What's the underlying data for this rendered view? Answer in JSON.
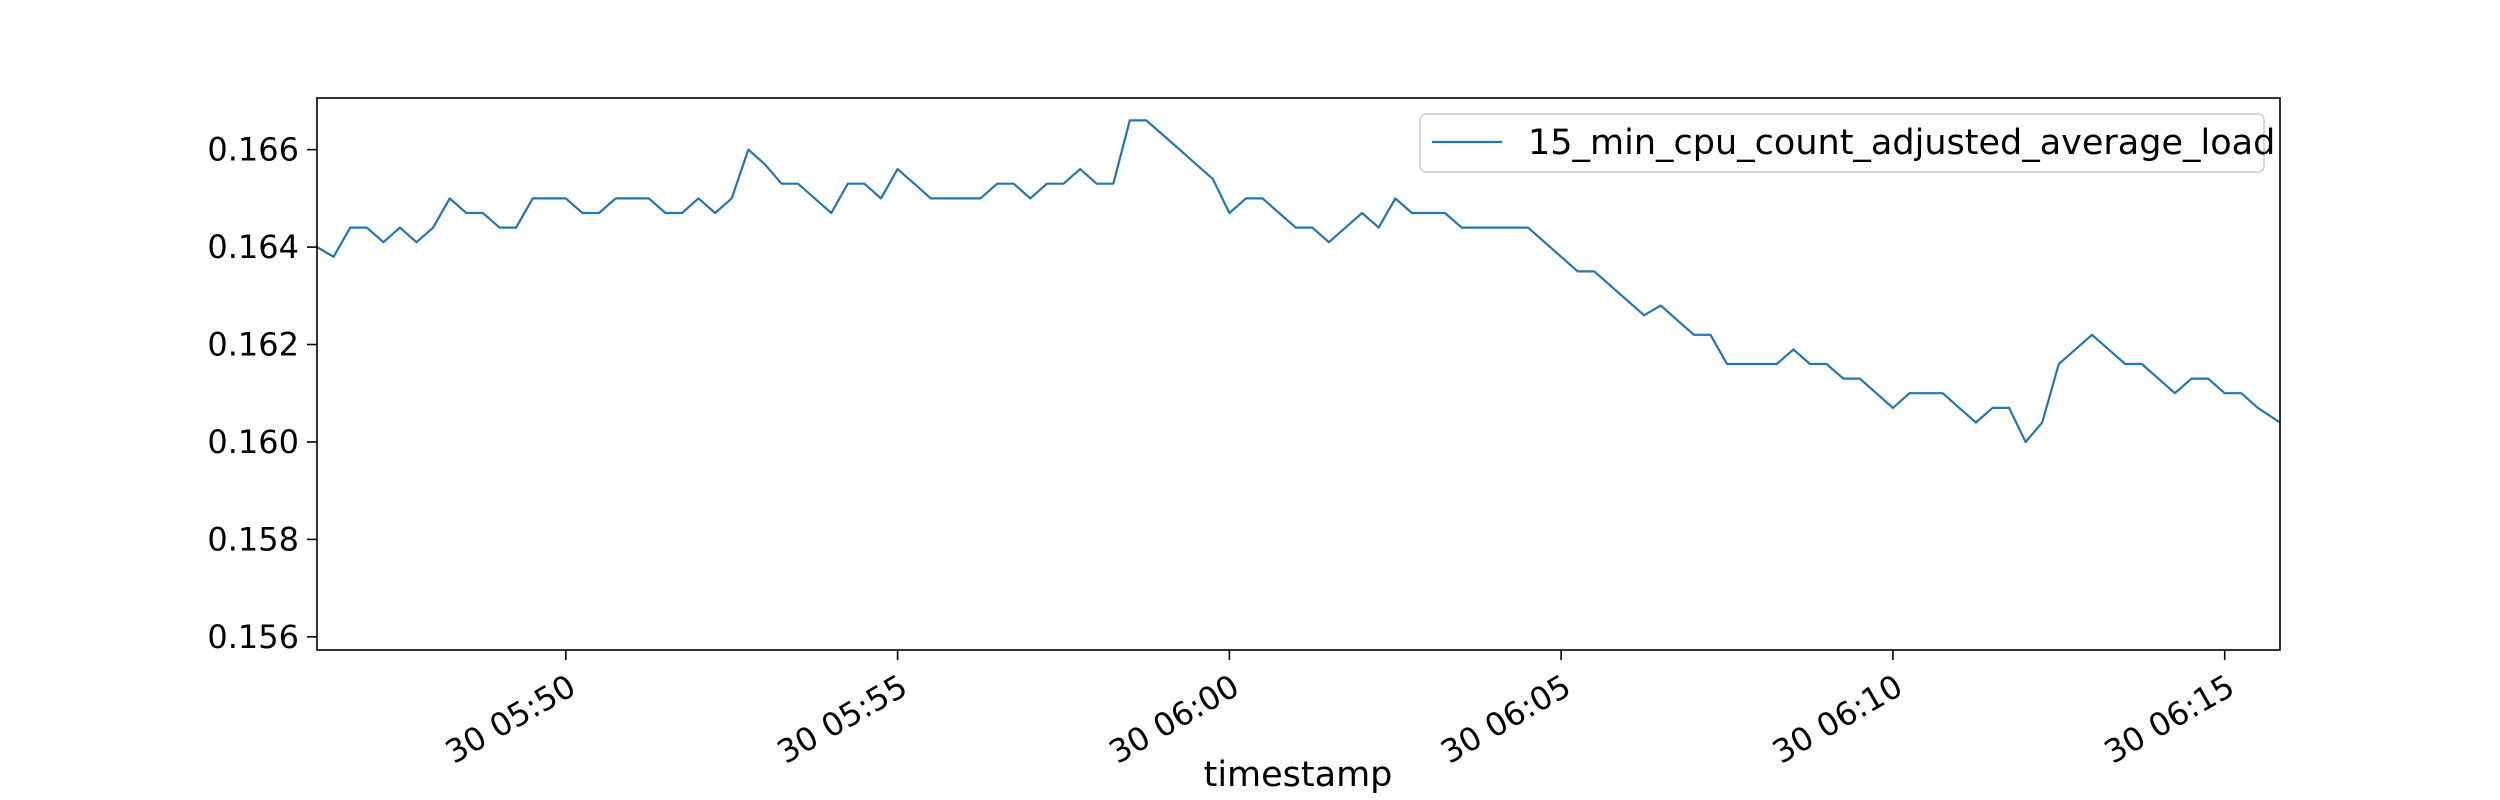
{
  "chart_data": {
    "type": "line",
    "title": "",
    "xlabel": "timestamp",
    "ylabel": "",
    "x_start": "2024-01-30 05:46:15",
    "x_end": "2024-01-30 06:15:50",
    "ylim": [
      0.15573,
      0.16706
    ],
    "y_ticks": [
      0.156,
      0.158,
      0.16,
      0.162,
      0.164,
      0.166
    ],
    "y_tick_labels": [
      "0.156",
      "0.158",
      "0.160",
      "0.162",
      "0.164",
      "0.166"
    ],
    "x_ticks": [
      "2024-01-30 05:50",
      "2024-01-30 05:55",
      "2024-01-30 06:00",
      "2024-01-30 06:05",
      "2024-01-30 06:10",
      "2024-01-30 06:15"
    ],
    "x_tick_labels": [
      "30 05:50",
      "30 05:55",
      "30 06:00",
      "30 06:05",
      "30 06:10",
      "30 06:15"
    ],
    "grid": false,
    "legend_position": "top-right",
    "line_color": "#1f77b4",
    "series": [
      {
        "name": "15_min_cpu_count_adjusted_average_load",
        "points": [
          [
            "2024-01-30 05:46:15",
            0.164
          ],
          [
            "2024-01-30 05:46:30",
            0.1638
          ],
          [
            "2024-01-30 05:46:45",
            0.1644
          ],
          [
            "2024-01-30 05:47:00",
            0.1644
          ],
          [
            "2024-01-30 05:47:15",
            0.1641
          ],
          [
            "2024-01-30 05:47:30",
            0.1644
          ],
          [
            "2024-01-30 05:47:45",
            0.1641
          ],
          [
            "2024-01-30 05:48:00",
            0.1644
          ],
          [
            "2024-01-30 05:48:15",
            0.165
          ],
          [
            "2024-01-30 05:48:30",
            0.1647
          ],
          [
            "2024-01-30 05:48:45",
            0.1647
          ],
          [
            "2024-01-30 05:49:00",
            0.1644
          ],
          [
            "2024-01-30 05:49:15",
            0.1644
          ],
          [
            "2024-01-30 05:49:30",
            0.165
          ],
          [
            "2024-01-30 05:49:45",
            0.165
          ],
          [
            "2024-01-30 05:50:00",
            0.165
          ],
          [
            "2024-01-30 05:50:15",
            0.1647
          ],
          [
            "2024-01-30 05:50:30",
            0.1647
          ],
          [
            "2024-01-30 05:50:45",
            0.165
          ],
          [
            "2024-01-30 05:51:00",
            0.165
          ],
          [
            "2024-01-30 05:51:15",
            0.165
          ],
          [
            "2024-01-30 05:51:30",
            0.1647
          ],
          [
            "2024-01-30 05:51:45",
            0.1647
          ],
          [
            "2024-01-30 05:52:00",
            0.165
          ],
          [
            "2024-01-30 05:52:15",
            0.1647
          ],
          [
            "2024-01-30 05:52:30",
            0.165
          ],
          [
            "2024-01-30 05:52:45",
            0.166
          ],
          [
            "2024-01-30 05:53:00",
            0.1657
          ],
          [
            "2024-01-30 05:53:15",
            0.1653
          ],
          [
            "2024-01-30 05:53:30",
            0.1653
          ],
          [
            "2024-01-30 05:53:45",
            0.165
          ],
          [
            "2024-01-30 05:54:00",
            0.1647
          ],
          [
            "2024-01-30 05:54:15",
            0.1653
          ],
          [
            "2024-01-30 05:54:30",
            0.1653
          ],
          [
            "2024-01-30 05:54:45",
            0.165
          ],
          [
            "2024-01-30 05:55:00",
            0.1656
          ],
          [
            "2024-01-30 05:55:15",
            0.1653
          ],
          [
            "2024-01-30 05:55:30",
            0.165
          ],
          [
            "2024-01-30 05:55:45",
            0.165
          ],
          [
            "2024-01-30 05:56:00",
            0.165
          ],
          [
            "2024-01-30 05:56:15",
            0.165
          ],
          [
            "2024-01-30 05:56:30",
            0.1653
          ],
          [
            "2024-01-30 05:56:45",
            0.1653
          ],
          [
            "2024-01-30 05:57:00",
            0.165
          ],
          [
            "2024-01-30 05:57:15",
            0.1653
          ],
          [
            "2024-01-30 05:57:30",
            0.1653
          ],
          [
            "2024-01-30 05:57:45",
            0.1656
          ],
          [
            "2024-01-30 05:58:00",
            0.1653
          ],
          [
            "2024-01-30 05:58:15",
            0.1653
          ],
          [
            "2024-01-30 05:58:30",
            0.1666
          ],
          [
            "2024-01-30 05:58:45",
            0.1666
          ],
          [
            "2024-01-30 05:59:00",
            0.1663
          ],
          [
            "2024-01-30 05:59:15",
            0.166
          ],
          [
            "2024-01-30 05:59:30",
            0.1657
          ],
          [
            "2024-01-30 05:59:45",
            0.1654
          ],
          [
            "2024-01-30 06:00:00",
            0.1647
          ],
          [
            "2024-01-30 06:00:15",
            0.165
          ],
          [
            "2024-01-30 06:00:30",
            0.165
          ],
          [
            "2024-01-30 06:00:45",
            0.1647
          ],
          [
            "2024-01-30 06:01:00",
            0.1644
          ],
          [
            "2024-01-30 06:01:15",
            0.1644
          ],
          [
            "2024-01-30 06:01:30",
            0.1641
          ],
          [
            "2024-01-30 06:01:45",
            0.1644
          ],
          [
            "2024-01-30 06:02:00",
            0.1647
          ],
          [
            "2024-01-30 06:02:15",
            0.1644
          ],
          [
            "2024-01-30 06:02:30",
            0.165
          ],
          [
            "2024-01-30 06:02:45",
            0.1647
          ],
          [
            "2024-01-30 06:03:00",
            0.1647
          ],
          [
            "2024-01-30 06:03:15",
            0.1647
          ],
          [
            "2024-01-30 06:03:30",
            0.1644
          ],
          [
            "2024-01-30 06:03:45",
            0.1644
          ],
          [
            "2024-01-30 06:04:00",
            0.1644
          ],
          [
            "2024-01-30 06:04:15",
            0.1644
          ],
          [
            "2024-01-30 06:04:30",
            0.1644
          ],
          [
            "2024-01-30 06:04:45",
            0.1641
          ],
          [
            "2024-01-30 06:05:00",
            0.1638
          ],
          [
            "2024-01-30 06:05:15",
            0.1635
          ],
          [
            "2024-01-30 06:05:30",
            0.1635
          ],
          [
            "2024-01-30 06:05:45",
            0.1632
          ],
          [
            "2024-01-30 06:06:00",
            0.1629
          ],
          [
            "2024-01-30 06:06:15",
            0.1626
          ],
          [
            "2024-01-30 06:06:30",
            0.1628
          ],
          [
            "2024-01-30 06:06:45",
            0.1625
          ],
          [
            "2024-01-30 06:07:00",
            0.1622
          ],
          [
            "2024-01-30 06:07:15",
            0.1622
          ],
          [
            "2024-01-30 06:07:30",
            0.1616
          ],
          [
            "2024-01-30 06:07:45",
            0.1616
          ],
          [
            "2024-01-30 06:08:00",
            0.1616
          ],
          [
            "2024-01-30 06:08:15",
            0.1616
          ],
          [
            "2024-01-30 06:08:30",
            0.1619
          ],
          [
            "2024-01-30 06:08:45",
            0.1616
          ],
          [
            "2024-01-30 06:09:00",
            0.1616
          ],
          [
            "2024-01-30 06:09:15",
            0.1613
          ],
          [
            "2024-01-30 06:09:30",
            0.1613
          ],
          [
            "2024-01-30 06:09:45",
            0.161
          ],
          [
            "2024-01-30 06:10:00",
            0.1607
          ],
          [
            "2024-01-30 06:10:15",
            0.161
          ],
          [
            "2024-01-30 06:10:30",
            0.161
          ],
          [
            "2024-01-30 06:10:45",
            0.161
          ],
          [
            "2024-01-30 06:11:00",
            0.1607
          ],
          [
            "2024-01-30 06:11:15",
            0.1604
          ],
          [
            "2024-01-30 06:11:30",
            0.1607
          ],
          [
            "2024-01-30 06:11:45",
            0.1607
          ],
          [
            "2024-01-30 06:12:00",
            0.16
          ],
          [
            "2024-01-30 06:12:15",
            0.1604
          ],
          [
            "2024-01-30 06:12:30",
            0.1616
          ],
          [
            "2024-01-30 06:12:45",
            0.1619
          ],
          [
            "2024-01-30 06:13:00",
            0.1622
          ],
          [
            "2024-01-30 06:13:15",
            0.1619
          ],
          [
            "2024-01-30 06:13:30",
            0.1616
          ],
          [
            "2024-01-30 06:13:45",
            0.1616
          ],
          [
            "2024-01-30 06:14:00",
            0.1613
          ],
          [
            "2024-01-30 06:14:15",
            0.161
          ],
          [
            "2024-01-30 06:14:30",
            0.1613
          ],
          [
            "2024-01-30 06:14:45",
            0.1613
          ],
          [
            "2024-01-30 06:15:00",
            0.161
          ],
          [
            "2024-01-30 06:15:15",
            0.161
          ],
          [
            "2024-01-30 06:15:30",
            0.1607
          ],
          [
            "2024-01-30 06:15:50",
            0.1604
          ]
        ]
      }
    ]
  }
}
